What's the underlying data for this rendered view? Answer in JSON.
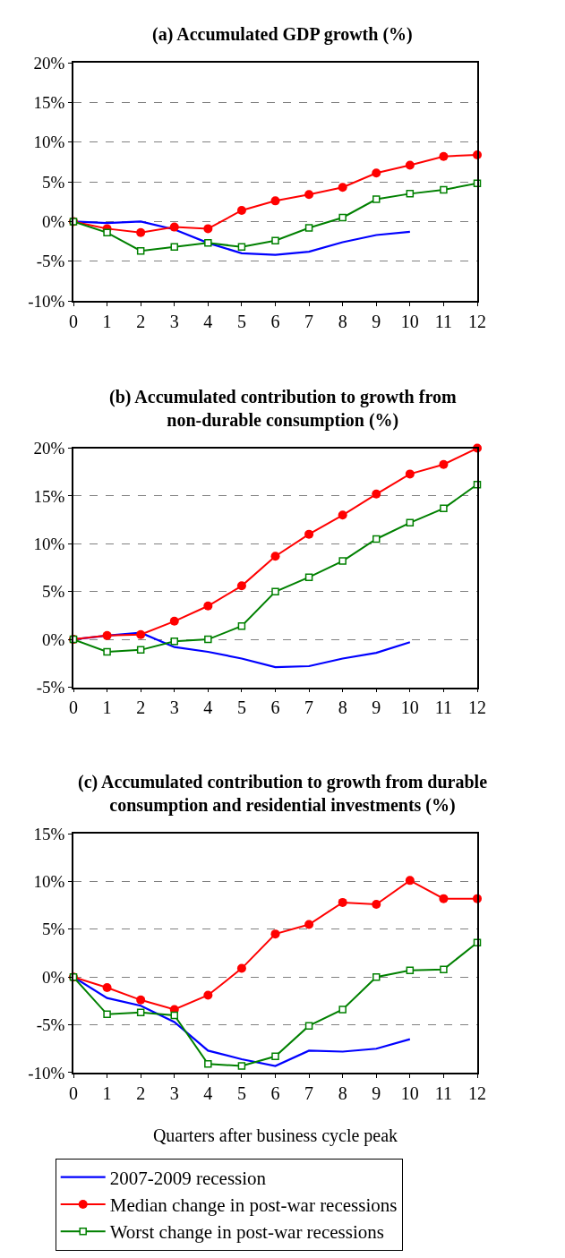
{
  "chart_data": [
    {
      "type": "line",
      "title": "(a) Accumulated GDP growth (%)",
      "x": [
        0,
        1,
        2,
        3,
        4,
        5,
        6,
        7,
        8,
        9,
        10,
        11,
        12
      ],
      "series": [
        {
          "name": "2007-2009 recession",
          "color": "#0000ff",
          "marker": "none",
          "values": [
            0,
            -0.2,
            0,
            -1.0,
            -2.7,
            -4.0,
            -4.2,
            -3.8,
            -2.6,
            -1.7,
            -1.3,
            null,
            null
          ]
        },
        {
          "name": "Median change in post-war recessions",
          "color": "#ff0000",
          "marker": "circle",
          "values": [
            0,
            -0.9,
            -1.4,
            -0.7,
            -0.9,
            1.4,
            2.6,
            3.4,
            4.3,
            6.1,
            7.1,
            8.2,
            8.4
          ]
        },
        {
          "name": "Worst change in post-war recessions",
          "color": "#008000",
          "marker": "square",
          "values": [
            0,
            -1.4,
            -3.7,
            -3.2,
            -2.7,
            -3.2,
            -2.4,
            -0.8,
            0.5,
            2.8,
            3.5,
            4.0,
            4.8
          ]
        }
      ],
      "xlim": [
        0,
        12
      ],
      "xticks": [
        0,
        1,
        2,
        3,
        4,
        5,
        6,
        7,
        8,
        9,
        10,
        11,
        12
      ],
      "ylim": [
        -10,
        20
      ],
      "yticks": [
        {
          "value": -10,
          "label": "-10%"
        },
        {
          "value": -5,
          "label": "-5%"
        },
        {
          "value": 0,
          "label": "0%"
        },
        {
          "value": 5,
          "label": "5%"
        },
        {
          "value": 10,
          "label": "10%"
        },
        {
          "value": 15,
          "label": "15%"
        },
        {
          "value": 20,
          "label": "20%"
        }
      ],
      "grid": "y",
      "legend": "bottom"
    },
    {
      "type": "line",
      "title": "(b) Accumulated contribution to growth from\nnon-durable consumption (%)",
      "x": [
        0,
        1,
        2,
        3,
        4,
        5,
        6,
        7,
        8,
        9,
        10,
        11,
        12
      ],
      "series": [
        {
          "color": "#0000ff",
          "marker": "none",
          "values": [
            0,
            0.4,
            0.7,
            -0.8,
            -1.3,
            -2.0,
            -2.9,
            -2.8,
            -2.0,
            -1.4,
            -0.3,
            null,
            null
          ]
        },
        {
          "color": "#ff0000",
          "marker": "circle",
          "values": [
            0,
            0.4,
            0.5,
            1.9,
            3.5,
            5.6,
            8.7,
            11.0,
            13.0,
            15.2,
            17.3,
            18.3,
            20.0
          ]
        },
        {
          "color": "#008000",
          "marker": "square",
          "values": [
            0,
            -1.3,
            -1.1,
            -0.2,
            0,
            1.4,
            5.0,
            6.5,
            8.2,
            10.5,
            12.2,
            13.7,
            16.2
          ]
        }
      ],
      "xlim": [
        0,
        12
      ],
      "xticks": [
        0,
        1,
        2,
        3,
        4,
        5,
        6,
        7,
        8,
        9,
        10,
        11,
        12
      ],
      "ylim": [
        -5,
        20
      ],
      "yticks": [
        {
          "value": -5,
          "label": "-5%"
        },
        {
          "value": 0,
          "label": "0%"
        },
        {
          "value": 5,
          "label": "5%"
        },
        {
          "value": 10,
          "label": "10%"
        },
        {
          "value": 15,
          "label": "15%"
        },
        {
          "value": 20,
          "label": "20%"
        }
      ],
      "grid": "y"
    },
    {
      "type": "line",
      "title": "(c) Accumulated contribution to growth from durable\nconsumption and residential investments (%)",
      "xlabel": "Quarters after business cycle peak",
      "x": [
        0,
        1,
        2,
        3,
        4,
        5,
        6,
        7,
        8,
        9,
        10,
        11,
        12
      ],
      "series": [
        {
          "color": "#0000ff",
          "marker": "none",
          "values": [
            0,
            -2.2,
            -3.0,
            -4.7,
            -7.7,
            -8.6,
            -9.3,
            -7.7,
            -7.8,
            -7.5,
            -6.5,
            null,
            null
          ]
        },
        {
          "color": "#ff0000",
          "marker": "circle",
          "values": [
            0,
            -1.1,
            -2.4,
            -3.4,
            -1.9,
            0.9,
            4.5,
            5.5,
            7.8,
            7.6,
            10.1,
            8.2,
            8.2
          ]
        },
        {
          "color": "#008000",
          "marker": "square",
          "values": [
            0,
            -3.9,
            -3.7,
            -4.0,
            -9.1,
            -9.3,
            -8.3,
            -5.1,
            -3.4,
            0,
            0.7,
            0.8,
            3.6
          ]
        }
      ],
      "xlim": [
        0,
        12
      ],
      "xticks": [
        0,
        1,
        2,
        3,
        4,
        5,
        6,
        7,
        8,
        9,
        10,
        11,
        12
      ],
      "ylim": [
        -10,
        15
      ],
      "yticks": [
        {
          "value": -10,
          "label": "-10%"
        },
        {
          "value": -5,
          "label": "-5%"
        },
        {
          "value": 0,
          "label": "0%"
        },
        {
          "value": 5,
          "label": "5%"
        },
        {
          "value": 10,
          "label": "10%"
        },
        {
          "value": 15,
          "label": "15%"
        }
      ],
      "grid": "y"
    }
  ]
}
